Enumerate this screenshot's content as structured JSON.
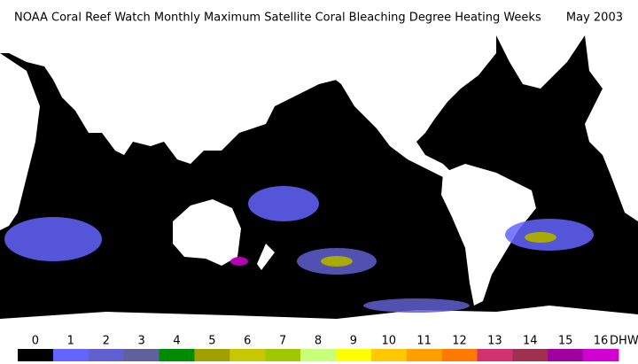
{
  "title": "NOAA Coral Reef Watch Monthly Maximum Satellite Coral Bleaching Degree Heating Weeks",
  "date": "May 2003",
  "legend": {
    "levels": [
      0,
      1,
      2,
      3,
      4,
      5,
      6,
      7,
      8,
      9,
      10,
      11,
      12,
      13,
      14,
      15,
      16
    ],
    "colors": [
      "#000000",
      "#6464ff",
      "#6060d0",
      "#60609c",
      "#008c00",
      "#a0a000",
      "#c8c800",
      "#a0c800",
      "#c8ff78",
      "#ffff00",
      "#ffc800",
      "#ffa000",
      "#ff7800",
      "#d2326e",
      "#a03050",
      "#a000a0",
      "#d200d2"
    ],
    "unit": "DHW"
  }
}
